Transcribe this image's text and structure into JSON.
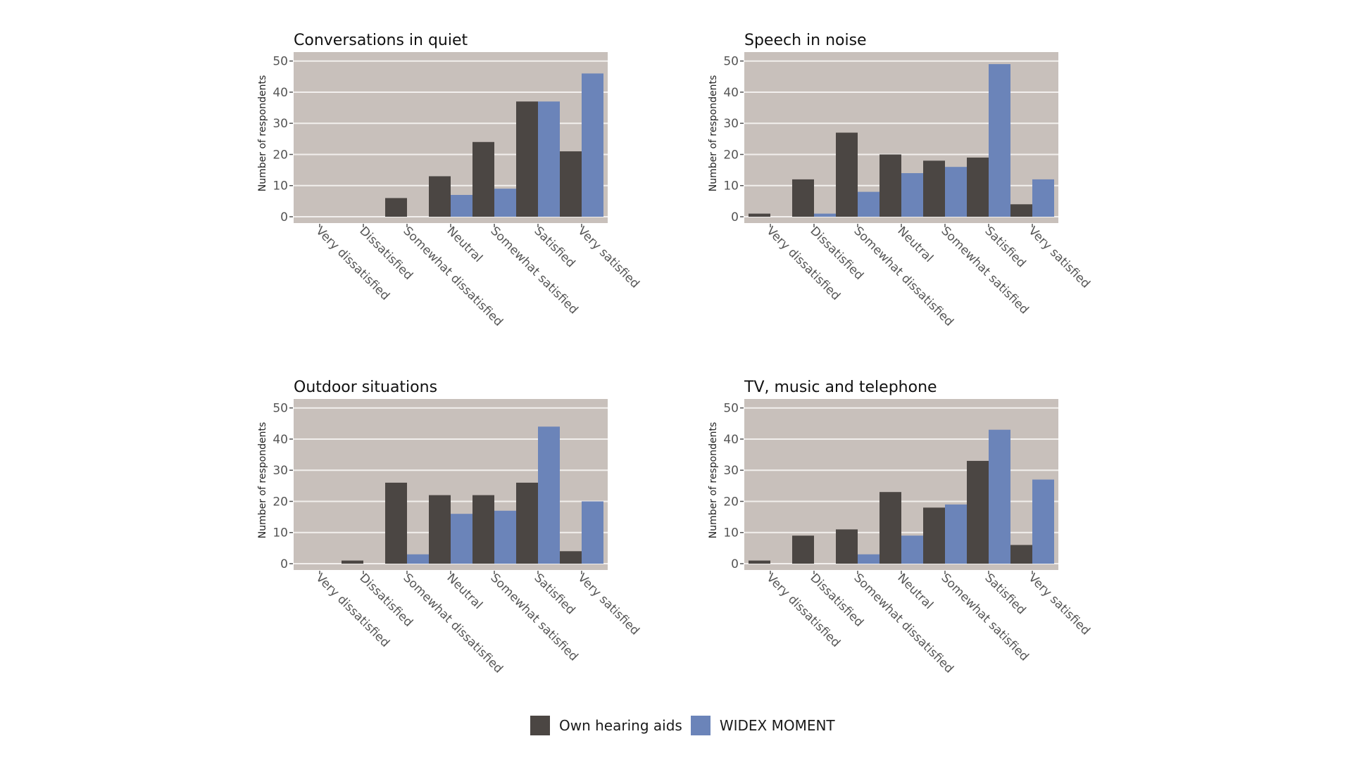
{
  "chart_data": [
    {
      "type": "bar",
      "title": "Conversations in quiet",
      "xlabel": "",
      "ylabel": "Number of respondents",
      "ylim": [
        0,
        50
      ],
      "yticks": [
        0,
        10,
        20,
        30,
        40,
        50
      ],
      "grid": true,
      "categories": [
        "Very dissatisfied",
        "Dissatisfied",
        "Somewhat dissatisfied",
        "Neutral",
        "Somewhat satisfied",
        "Satisfied",
        "Very satisfied"
      ],
      "series": [
        {
          "name": "Own hearing aids",
          "values": [
            0,
            0,
            6,
            13,
            24,
            37,
            21
          ]
        },
        {
          "name": "WIDEX MOMENT",
          "values": [
            0,
            0,
            0,
            7,
            9,
            37,
            46
          ]
        }
      ]
    },
    {
      "type": "bar",
      "title": "Speech in noise",
      "xlabel": "",
      "ylabel": "Number of respondents",
      "ylim": [
        0,
        50
      ],
      "yticks": [
        0,
        10,
        20,
        30,
        40,
        50
      ],
      "grid": true,
      "categories": [
        "Very dissatisfied",
        "Dissatisfied",
        "Somewhat dissatisfied",
        "Neutral",
        "Somewhat satisfied",
        "Satisfied",
        "Very satisfied"
      ],
      "series": [
        {
          "name": "Own hearing aids",
          "values": [
            1,
            12,
            27,
            20,
            18,
            19,
            4
          ]
        },
        {
          "name": "WIDEX MOMENT",
          "values": [
            0,
            1,
            8,
            14,
            16,
            49,
            12
          ]
        }
      ]
    },
    {
      "type": "bar",
      "title": "Outdoor situations",
      "xlabel": "",
      "ylabel": "Number of respondents",
      "ylim": [
        0,
        50
      ],
      "yticks": [
        0,
        10,
        20,
        30,
        40,
        50
      ],
      "grid": true,
      "categories": [
        "Very dissatisfied",
        "Dissatisfied",
        "Somewhat dissatisfied",
        "Neutral",
        "Somewhat satisfied",
        "Satisfied",
        "Very satisfied"
      ],
      "series": [
        {
          "name": "Own hearing aids",
          "values": [
            0,
            1,
            26,
            22,
            22,
            26,
            4
          ]
        },
        {
          "name": "WIDEX MOMENT",
          "values": [
            0,
            0,
            3,
            16,
            17,
            44,
            20
          ]
        }
      ]
    },
    {
      "type": "bar",
      "title": "TV, music and telephone",
      "xlabel": "",
      "ylabel": "Number of respondents",
      "ylim": [
        0,
        50
      ],
      "yticks": [
        0,
        10,
        20,
        30,
        40,
        50
      ],
      "grid": true,
      "categories": [
        "Very dissatisfied",
        "Dissatisfied",
        "Somewhat dissatisfied",
        "Neutral",
        "Somewhat satisfied",
        "Satisfied",
        "Very satisfied"
      ],
      "series": [
        {
          "name": "Own hearing aids",
          "values": [
            1,
            9,
            11,
            23,
            18,
            33,
            6
          ]
        },
        {
          "name": "WIDEX MOMENT",
          "values": [
            0,
            0,
            3,
            9,
            19,
            43,
            27
          ]
        }
      ]
    }
  ],
  "legend": {
    "position": "bottom",
    "items": [
      {
        "label": "Own hearing aids",
        "color": "#4b4643"
      },
      {
        "label": "WIDEX MOMENT",
        "color": "#6b84b9"
      }
    ]
  },
  "colors": {
    "panel_background": "#c8c0bb",
    "gridline": "#f2efed",
    "tick_text": "#555555",
    "title_text": "#111111"
  }
}
